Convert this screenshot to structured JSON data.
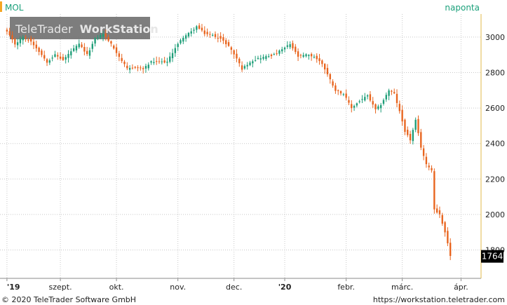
{
  "header": {
    "symbol": "MOL",
    "interval": "naponta",
    "watermark_brand": "TeleTrader",
    "watermark_product": "WorkStation"
  },
  "footer": {
    "copyright": "© 2020 TeleTrader Software GmbH",
    "url": "https://workstation.teletrader.com"
  },
  "colors": {
    "up": "#1e9e78",
    "down": "#e8641e",
    "accent": "#f5a623",
    "interval_text": "#1aa07a",
    "last_box": "#000000",
    "grid": "#c8c8c8"
  },
  "chart_data": {
    "type": "candlestick",
    "title": "",
    "xlabel": "",
    "ylabel": "",
    "ylim": [
      1640,
      3130
    ],
    "yticks": [
      1800,
      2000,
      2200,
      2400,
      2600,
      2800,
      3000
    ],
    "y_grid": true,
    "x_grid": true,
    "last_price": "1764",
    "x_ticks": [
      {
        "label": "'19",
        "index": 0,
        "bold": true
      },
      {
        "label": "szept.",
        "index": 20,
        "bold": false
      },
      {
        "label": "okt.",
        "index": 41,
        "bold": false
      },
      {
        "label": "nov.",
        "index": 64,
        "bold": false
      },
      {
        "label": "dec.",
        "index": 85,
        "bold": false
      },
      {
        "label": "'20",
        "index": 104,
        "bold": true
      },
      {
        "label": "febr.",
        "index": 127,
        "bold": false
      },
      {
        "label": "márc.",
        "index": 148,
        "bold": false
      },
      {
        "label": "ápr.",
        "index": 170,
        "bold": false
      }
    ],
    "n_slots": 178,
    "anchors": [
      [
        0,
        3030
      ],
      [
        3,
        2960
      ],
      [
        6,
        3000
      ],
      [
        9,
        2975
      ],
      [
        12,
        2920
      ],
      [
        15,
        2860
      ],
      [
        18,
        2900
      ],
      [
        21,
        2870
      ],
      [
        24,
        2920
      ],
      [
        27,
        2960
      ],
      [
        30,
        2900
      ],
      [
        33,
        2990
      ],
      [
        36,
        3020
      ],
      [
        39,
        2960
      ],
      [
        42,
        2890
      ],
      [
        45,
        2820
      ],
      [
        48,
        2830
      ],
      [
        51,
        2820
      ],
      [
        54,
        2860
      ],
      [
        57,
        2860
      ],
      [
        60,
        2860
      ],
      [
        63,
        2940
      ],
      [
        66,
        3000
      ],
      [
        69,
        3030
      ],
      [
        71,
        3060
      ],
      [
        74,
        3020
      ],
      [
        77,
        3010
      ],
      [
        80,
        2990
      ],
      [
        83,
        2950
      ],
      [
        86,
        2880
      ],
      [
        88,
        2820
      ],
      [
        91,
        2860
      ],
      [
        94,
        2880
      ],
      [
        97,
        2890
      ],
      [
        100,
        2900
      ],
      [
        103,
        2930
      ],
      [
        106,
        2960
      ],
      [
        109,
        2890
      ],
      [
        112,
        2900
      ],
      [
        115,
        2890
      ],
      [
        118,
        2850
      ],
      [
        120,
        2790
      ],
      [
        123,
        2700
      ],
      [
        126,
        2680
      ],
      [
        129,
        2600
      ],
      [
        132,
        2640
      ],
      [
        135,
        2670
      ],
      [
        138,
        2590
      ],
      [
        140,
        2620
      ],
      [
        143,
        2700
      ],
      [
        145,
        2680
      ],
      [
        147,
        2580
      ],
      [
        149,
        2470
      ],
      [
        151,
        2420
      ],
      [
        153,
        2530
      ],
      [
        155,
        2380
      ],
      [
        157,
        2280
      ],
      [
        158,
        2270
      ],
      [
        159,
        2250
      ],
      [
        160,
        2030
      ],
      [
        162,
        2000
      ],
      [
        164,
        1900
      ],
      [
        165,
        1840
      ],
      [
        166,
        1764
      ]
    ]
  }
}
